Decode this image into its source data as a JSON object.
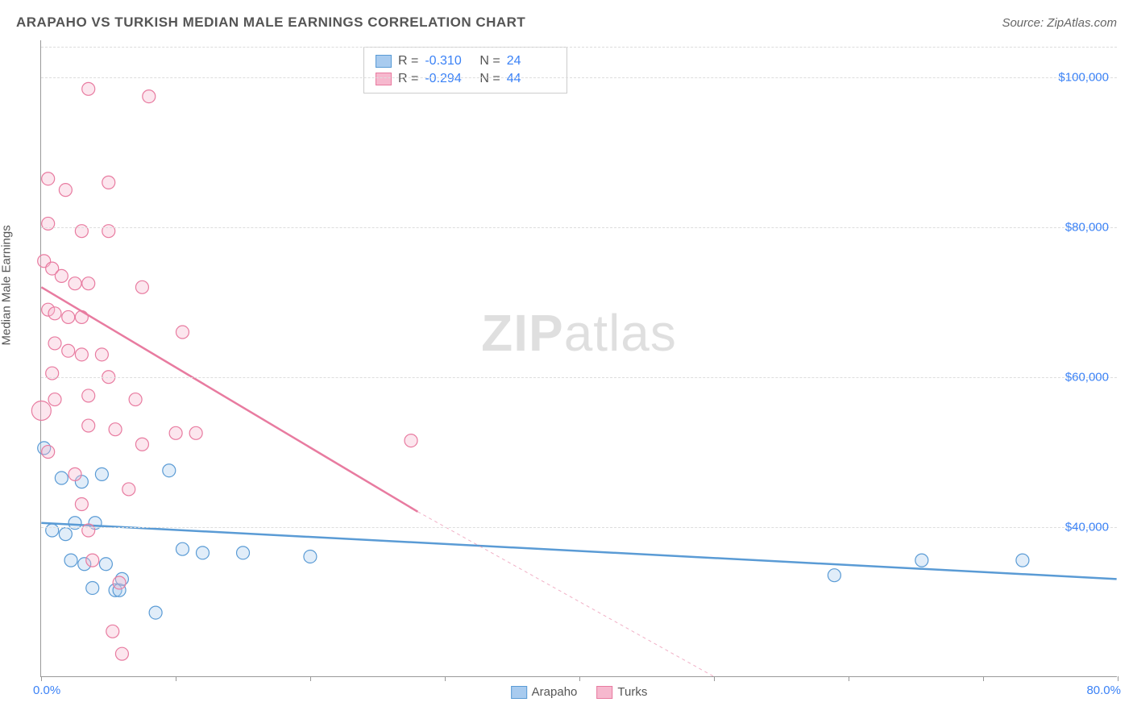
{
  "title": "ARAPAHO VS TURKISH MEDIAN MALE EARNINGS CORRELATION CHART",
  "source": "Source: ZipAtlas.com",
  "watermark_bold": "ZIP",
  "watermark_light": "atlas",
  "y_axis_label": "Median Male Earnings",
  "chart": {
    "type": "scatter",
    "x_domain": [
      0,
      80
    ],
    "y_domain": [
      20000,
      105000
    ],
    "x_min_label": "0.0%",
    "x_max_label": "80.0%",
    "x_tick_step": 10,
    "y_ticks": [
      40000,
      60000,
      80000,
      100000
    ],
    "y_tick_labels": [
      "$40,000",
      "$60,000",
      "$80,000",
      "$100,000"
    ],
    "grid_color": "#dddddd",
    "axis_color": "#999999",
    "background_color": "#ffffff",
    "label_color": "#3b82f6",
    "text_color": "#555555",
    "point_radius": 8,
    "point_stroke_width": 1.2,
    "point_fill_opacity": 0.35,
    "line_width": 2.5
  },
  "series": [
    {
      "name": "Arapaho",
      "color_stroke": "#5a9bd5",
      "color_fill": "#a8cbef",
      "r_value": "-0.310",
      "n_value": "24",
      "trend": {
        "x1": 0,
        "y1": 40500,
        "x2": 80,
        "y2": 33000
      },
      "trend_dash": "none",
      "points": [
        {
          "x": 0.2,
          "y": 50500
        },
        {
          "x": 1.5,
          "y": 46500
        },
        {
          "x": 3.0,
          "y": 46000
        },
        {
          "x": 4.5,
          "y": 47000
        },
        {
          "x": 9.5,
          "y": 47500
        },
        {
          "x": 0.8,
          "y": 39500
        },
        {
          "x": 1.8,
          "y": 39000
        },
        {
          "x": 2.2,
          "y": 35500
        },
        {
          "x": 3.2,
          "y": 35000
        },
        {
          "x": 4.8,
          "y": 35000
        },
        {
          "x": 3.8,
          "y": 31800
        },
        {
          "x": 5.5,
          "y": 31500
        },
        {
          "x": 5.8,
          "y": 31500
        },
        {
          "x": 6.0,
          "y": 33000
        },
        {
          "x": 8.5,
          "y": 28500
        },
        {
          "x": 10.5,
          "y": 37000
        },
        {
          "x": 12.0,
          "y": 36500
        },
        {
          "x": 15.0,
          "y": 36500
        },
        {
          "x": 20.0,
          "y": 36000
        },
        {
          "x": 59.0,
          "y": 33500
        },
        {
          "x": 65.5,
          "y": 35500
        },
        {
          "x": 73.0,
          "y": 35500
        },
        {
          "x": 2.5,
          "y": 40500
        },
        {
          "x": 4.0,
          "y": 40500
        }
      ]
    },
    {
      "name": "Turks",
      "color_stroke": "#e87ba0",
      "color_fill": "#f6b8ce",
      "r_value": "-0.294",
      "n_value": "44",
      "trend": {
        "x1": 0,
        "y1": 72000,
        "x2": 28,
        "y2": 42000
      },
      "trend_dash": "none",
      "trend_ext": {
        "x1": 28,
        "y1": 42000,
        "x2": 50,
        "y2": 20000
      },
      "trend_ext_dash": "4 4",
      "points": [
        {
          "x": 3.5,
          "y": 98500
        },
        {
          "x": 8.0,
          "y": 97500
        },
        {
          "x": 0.5,
          "y": 86500
        },
        {
          "x": 1.8,
          "y": 85000
        },
        {
          "x": 5.0,
          "y": 86000
        },
        {
          "x": 0.5,
          "y": 80500
        },
        {
          "x": 3.0,
          "y": 79500
        },
        {
          "x": 5.0,
          "y": 79500
        },
        {
          "x": 0.2,
          "y": 75500
        },
        {
          "x": 0.8,
          "y": 74500
        },
        {
          "x": 1.5,
          "y": 73500
        },
        {
          "x": 2.5,
          "y": 72500
        },
        {
          "x": 3.5,
          "y": 72500
        },
        {
          "x": 7.5,
          "y": 72000
        },
        {
          "x": 0.5,
          "y": 69000
        },
        {
          "x": 1.0,
          "y": 68500
        },
        {
          "x": 2.0,
          "y": 68000
        },
        {
          "x": 3.0,
          "y": 68000
        },
        {
          "x": 10.5,
          "y": 66000
        },
        {
          "x": 1.0,
          "y": 64500
        },
        {
          "x": 2.0,
          "y": 63500
        },
        {
          "x": 3.0,
          "y": 63000
        },
        {
          "x": 4.5,
          "y": 63000
        },
        {
          "x": 0.8,
          "y": 60500
        },
        {
          "x": 3.5,
          "y": 57500
        },
        {
          "x": 7.0,
          "y": 57000
        },
        {
          "x": 0.0,
          "y": 55500,
          "r": 12
        },
        {
          "x": 3.5,
          "y": 53500
        },
        {
          "x": 5.5,
          "y": 53000
        },
        {
          "x": 10.0,
          "y": 52500
        },
        {
          "x": 11.5,
          "y": 52500
        },
        {
          "x": 7.5,
          "y": 51000
        },
        {
          "x": 27.5,
          "y": 51500
        },
        {
          "x": 0.5,
          "y": 50000
        },
        {
          "x": 2.5,
          "y": 47000
        },
        {
          "x": 6.5,
          "y": 45000
        },
        {
          "x": 3.0,
          "y": 43000
        },
        {
          "x": 3.5,
          "y": 39500
        },
        {
          "x": 3.8,
          "y": 35500
        },
        {
          "x": 5.8,
          "y": 32500
        },
        {
          "x": 5.3,
          "y": 26000
        },
        {
          "x": 6.0,
          "y": 23000
        },
        {
          "x": 5.0,
          "y": 60000
        },
        {
          "x": 1.0,
          "y": 57000
        }
      ]
    }
  ],
  "legend_top": {
    "r_label": "R =",
    "n_label": "N ="
  },
  "legend_bottom": [
    {
      "label": "Arapaho",
      "stroke": "#5a9bd5",
      "fill": "#a8cbef"
    },
    {
      "label": "Turks",
      "stroke": "#e87ba0",
      "fill": "#f6b8ce"
    }
  ]
}
